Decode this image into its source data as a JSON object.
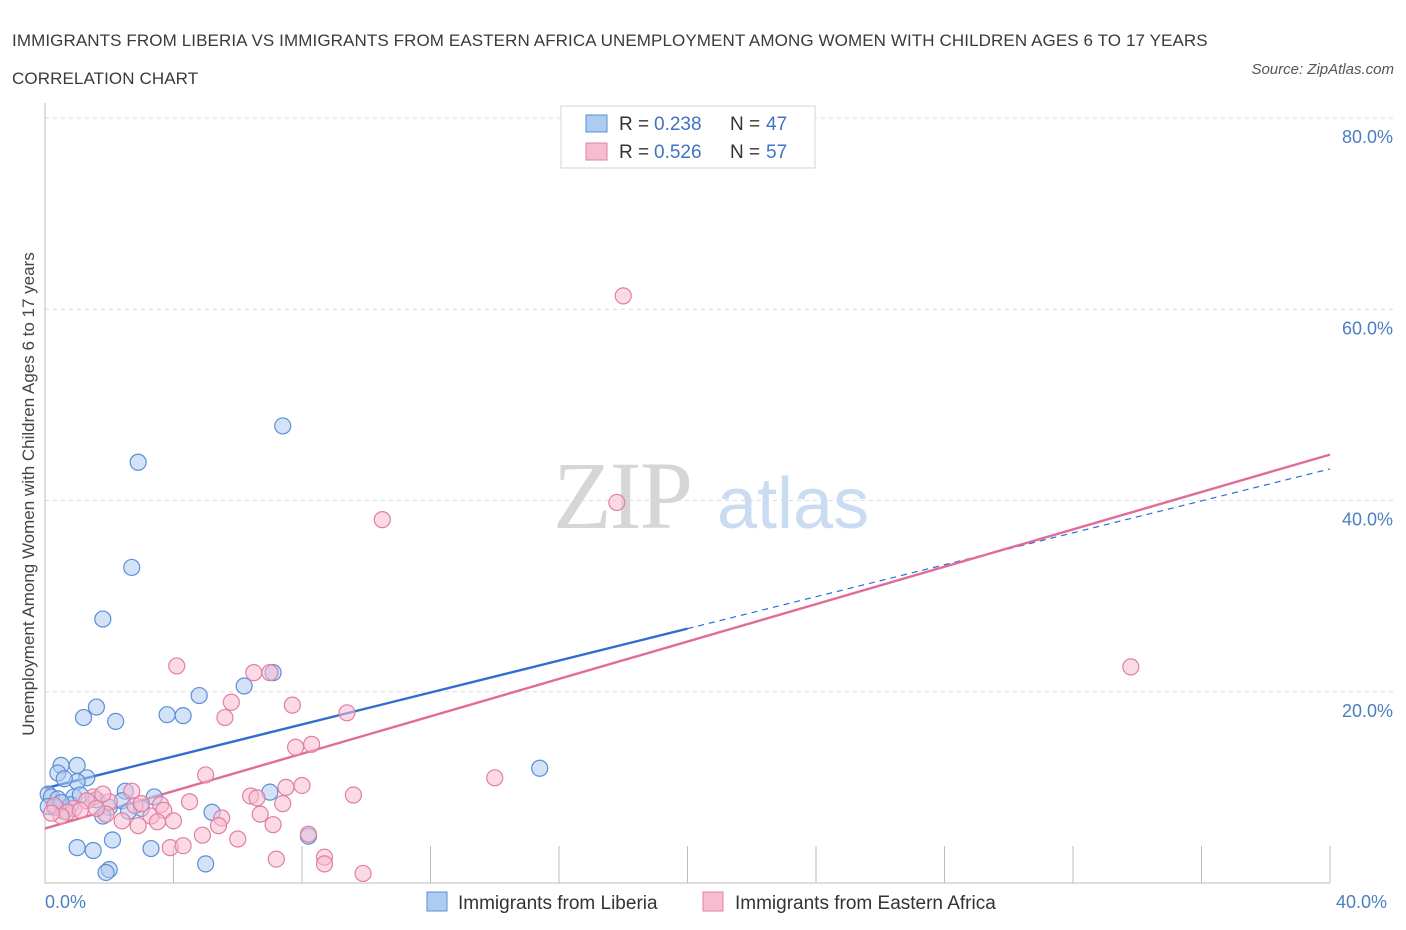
{
  "header": {
    "title": "IMMIGRANTS FROM LIBERIA VS IMMIGRANTS FROM EASTERN AFRICA UNEMPLOYMENT AMONG WOMEN WITH CHILDREN AGES 6 TO 17 YEARS CORRELATION CHART",
    "source": "Source: ZipAtlas.com"
  },
  "watermark": {
    "zip": "ZIP",
    "atlas": "atlas"
  },
  "colors": {
    "liberia_fill": "#aecbf0",
    "liberia_stroke": "#5b8fd6",
    "liberia_line": "#2f6ecf",
    "eafrica_fill": "#f7bcd0",
    "eafrica_stroke": "#e07fa3",
    "eafrica_line": "#e06c97",
    "tick_text": "#4a7fc1",
    "grid": "#dcdcdc"
  },
  "legend": {
    "r_label": "R =",
    "n_label": "N =",
    "rows": [
      {
        "series": "liberia",
        "r": "0.238",
        "n": "47"
      },
      {
        "series": "eafrica",
        "r": "0.526",
        "n": "57"
      }
    ]
  },
  "chart_data": {
    "type": "scatter",
    "title": "IMMIGRANTS FROM LIBERIA VS IMMIGRANTS FROM EASTERN AFRICA UNEMPLOYMENT AMONG WOMEN WITH CHILDREN AGES 6 TO 17 YEARS CORRELATION CHART",
    "xlabel": "",
    "ylabel": "Unemployment Among Women with Children Ages 6 to 17 years",
    "xlim": [
      0,
      40
    ],
    "ylim": [
      0,
      80
    ],
    "x_ticks": [
      "0.0%",
      "40.0%"
    ],
    "y_ticks": [
      {
        "value": 80,
        "label": "80.0%"
      },
      {
        "value": 60,
        "label": "60.0%"
      },
      {
        "value": 40,
        "label": "40.0%"
      },
      {
        "value": 20,
        "label": "20.0%"
      }
    ],
    "grid": true,
    "legend_position": "top-center",
    "series": [
      {
        "name": "Immigrants from Liberia",
        "key": "liberia",
        "r": 0.238,
        "n": 47,
        "trend": {
          "x": [
            0,
            20.0
          ],
          "y": [
            9.9,
            26.6
          ],
          "dashed_to": [
            40,
            43.3
          ]
        },
        "points": [
          [
            7.4,
            47.8
          ],
          [
            2.9,
            44.0
          ],
          [
            2.7,
            33.0
          ],
          [
            1.8,
            27.6
          ],
          [
            6.2,
            20.6
          ],
          [
            7.1,
            22.0
          ],
          [
            4.8,
            19.6
          ],
          [
            1.6,
            18.4
          ],
          [
            1.2,
            17.3
          ],
          [
            2.2,
            16.9
          ],
          [
            3.8,
            17.6
          ],
          [
            4.3,
            17.5
          ],
          [
            0.5,
            12.3
          ],
          [
            1.0,
            12.3
          ],
          [
            0.4,
            11.5
          ],
          [
            1.3,
            11.0
          ],
          [
            1.0,
            10.6
          ],
          [
            0.6,
            10.9
          ],
          [
            2.5,
            9.6
          ],
          [
            3.4,
            9.0
          ],
          [
            7.0,
            9.5
          ],
          [
            15.4,
            12.0
          ],
          [
            0.1,
            9.3
          ],
          [
            0.2,
            9.0
          ],
          [
            0.4,
            8.8
          ],
          [
            0.9,
            9.0
          ],
          [
            1.6,
            8.7
          ],
          [
            2.0,
            7.9
          ],
          [
            2.4,
            8.6
          ],
          [
            3.0,
            7.8
          ],
          [
            0.3,
            7.9
          ],
          [
            0.6,
            7.5
          ],
          [
            0.8,
            8.2
          ],
          [
            1.8,
            7.0
          ],
          [
            2.6,
            7.5
          ],
          [
            0.1,
            8.0
          ],
          [
            5.2,
            7.4
          ],
          [
            2.1,
            4.5
          ],
          [
            1.0,
            3.7
          ],
          [
            1.5,
            3.4
          ],
          [
            3.3,
            3.6
          ],
          [
            8.2,
            4.9
          ],
          [
            5.0,
            2.0
          ],
          [
            2.0,
            1.4
          ],
          [
            1.9,
            1.1
          ],
          [
            0.5,
            8.4
          ],
          [
            1.1,
            9.2
          ]
        ]
      },
      {
        "name": "Immigrants from Eastern Africa",
        "key": "eafrica",
        "r": 0.526,
        "n": 57,
        "trend": {
          "x": [
            0,
            40
          ],
          "y": [
            5.7,
            44.8
          ]
        },
        "points": [
          [
            18.0,
            61.4
          ],
          [
            17.8,
            39.8
          ],
          [
            10.5,
            38.0
          ],
          [
            33.8,
            22.6
          ],
          [
            4.1,
            22.7
          ],
          [
            6.5,
            22.0
          ],
          [
            7.0,
            22.0
          ],
          [
            5.8,
            18.9
          ],
          [
            7.7,
            18.6
          ],
          [
            5.6,
            17.3
          ],
          [
            9.4,
            17.8
          ],
          [
            7.8,
            14.2
          ],
          [
            8.3,
            14.5
          ],
          [
            14.0,
            11.0
          ],
          [
            5.0,
            11.3
          ],
          [
            7.5,
            10.0
          ],
          [
            8.0,
            10.2
          ],
          [
            9.6,
            9.2
          ],
          [
            6.4,
            9.1
          ],
          [
            1.5,
            9.0
          ],
          [
            2.7,
            9.6
          ],
          [
            3.6,
            8.2
          ],
          [
            4.5,
            8.5
          ],
          [
            7.4,
            8.3
          ],
          [
            0.3,
            8.1
          ],
          [
            0.9,
            7.8
          ],
          [
            1.3,
            8.6
          ],
          [
            2.0,
            8.5
          ],
          [
            3.3,
            7.0
          ],
          [
            3.7,
            7.6
          ],
          [
            0.7,
            7.4
          ],
          [
            1.9,
            7.2
          ],
          [
            5.5,
            6.8
          ],
          [
            6.7,
            7.2
          ],
          [
            2.4,
            6.5
          ],
          [
            3.5,
            6.4
          ],
          [
            4.0,
            6.5
          ],
          [
            2.9,
            6.0
          ],
          [
            5.4,
            6.0
          ],
          [
            7.1,
            6.1
          ],
          [
            0.5,
            7.0
          ],
          [
            1.1,
            7.6
          ],
          [
            4.9,
            5.0
          ],
          [
            6.0,
            4.6
          ],
          [
            8.2,
            5.1
          ],
          [
            3.9,
            3.7
          ],
          [
            4.3,
            3.9
          ],
          [
            7.2,
            2.5
          ],
          [
            8.7,
            2.7
          ],
          [
            8.7,
            2.0
          ],
          [
            9.9,
            1.0
          ],
          [
            1.6,
            7.8
          ],
          [
            2.8,
            8.1
          ],
          [
            0.2,
            7.3
          ],
          [
            1.8,
            9.3
          ],
          [
            6.6,
            8.9
          ],
          [
            3.0,
            8.3
          ]
        ]
      }
    ]
  },
  "bottom_legend": {
    "items": [
      {
        "series": "liberia",
        "label": "Immigrants from Liberia"
      },
      {
        "series": "eafrica",
        "label": "Immigrants from Eastern Africa"
      }
    ]
  }
}
